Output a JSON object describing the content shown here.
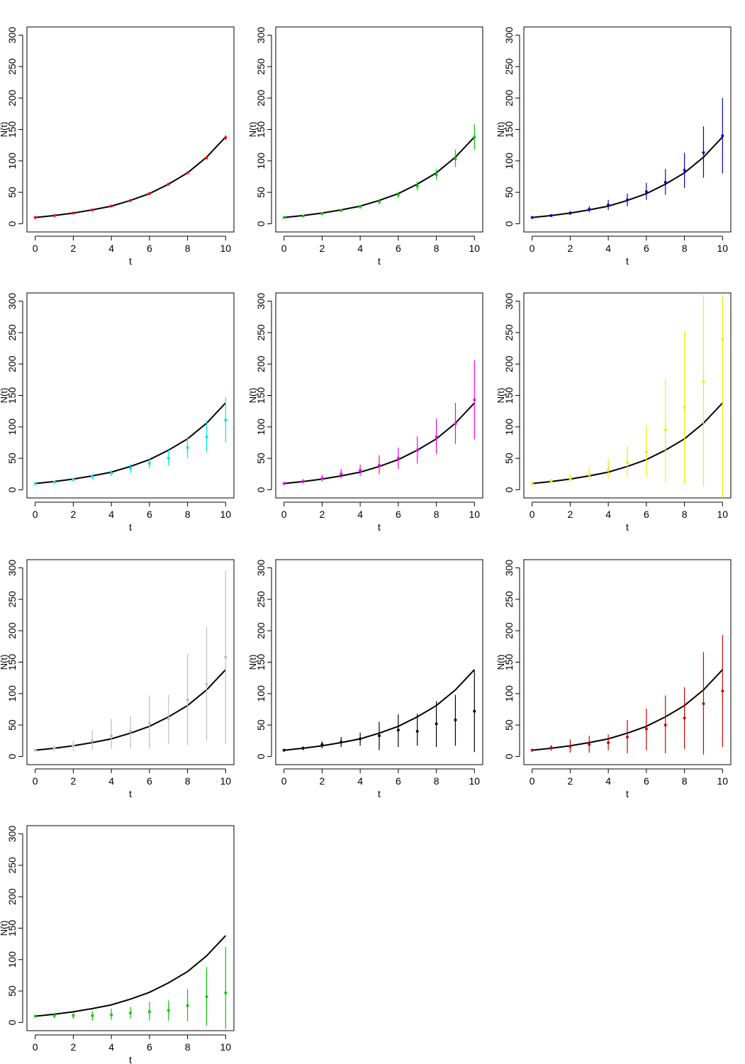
{
  "chart_data": [
    {
      "type": "scatter",
      "xlabel": "t",
      "ylabel": "N(t)",
      "xlim": [
        0,
        10
      ],
      "ylim": [
        0,
        300
      ],
      "xticks": [
        "0",
        "2",
        "4",
        "6",
        "8",
        "10"
      ],
      "yticks": [
        "0",
        "50",
        "100",
        "150",
        "200",
        "250",
        "300"
      ],
      "reference": {
        "x": [
          0,
          1,
          2,
          3,
          4,
          5,
          6,
          7,
          8,
          9,
          10
        ],
        "y": [
          10,
          13,
          17,
          22,
          28,
          37,
          48,
          63,
          81,
          106,
          138
        ],
        "color": "#000000"
      },
      "series": [
        {
          "color": "#ff0000",
          "x": [
            0,
            1,
            2,
            3,
            4,
            5,
            6,
            7,
            8,
            9,
            10
          ],
          "y": [
            10,
            13,
            17,
            22,
            28,
            37,
            48,
            63,
            81,
            105,
            137
          ],
          "lower": [
            9,
            12,
            16,
            21,
            27,
            35,
            46,
            61,
            79,
            102,
            133
          ],
          "upper": [
            11,
            14,
            18,
            23,
            29,
            39,
            50,
            65,
            83,
            108,
            141
          ]
        }
      ]
    },
    {
      "type": "scatter",
      "xlabel": "t",
      "ylabel": "N(t)",
      "xlim": [
        0,
        10
      ],
      "ylim": [
        0,
        300
      ],
      "xticks": [
        "0",
        "2",
        "4",
        "6",
        "8",
        "10"
      ],
      "yticks": [
        "0",
        "50",
        "100",
        "150",
        "200",
        "250",
        "300"
      ],
      "reference": {
        "x": [
          0,
          1,
          2,
          3,
          4,
          5,
          6,
          7,
          8,
          9,
          10
        ],
        "y": [
          10,
          13,
          17,
          22,
          28,
          37,
          48,
          63,
          81,
          106,
          138
        ],
        "color": "#000000"
      },
      "series": [
        {
          "color": "#00cd00",
          "x": [
            0,
            1,
            2,
            3,
            4,
            5,
            6,
            7,
            8,
            9,
            10
          ],
          "y": [
            10,
            12,
            16,
            21,
            27,
            35,
            46,
            60,
            78,
            103,
            138
          ],
          "lower": [
            9,
            11,
            14,
            19,
            24,
            31,
            41,
            53,
            70,
            90,
            118
          ],
          "upper": [
            11,
            14,
            18,
            23,
            30,
            39,
            51,
            67,
            87,
            118,
            158
          ]
        }
      ]
    },
    {
      "type": "scatter",
      "xlabel": "t",
      "ylabel": "N(t)",
      "xlim": [
        0,
        10
      ],
      "ylim": [
        0,
        300
      ],
      "xticks": [
        "0",
        "2",
        "4",
        "6",
        "8",
        "10"
      ],
      "yticks": [
        "0",
        "50",
        "100",
        "150",
        "200",
        "250",
        "300"
      ],
      "reference": {
        "x": [
          0,
          1,
          2,
          3,
          4,
          5,
          6,
          7,
          8,
          9,
          10
        ],
        "y": [
          10,
          13,
          17,
          22,
          28,
          37,
          48,
          63,
          81,
          106,
          138
        ],
        "color": "#000000"
      },
      "series": [
        {
          "color": "#0000cd",
          "x": [
            0,
            1,
            2,
            3,
            4,
            5,
            6,
            7,
            8,
            9,
            10
          ],
          "y": [
            10,
            13,
            17,
            23,
            30,
            38,
            51,
            66,
            85,
            113,
            140
          ],
          "lower": [
            8,
            11,
            14,
            18,
            22,
            28,
            38,
            46,
            57,
            73,
            80
          ],
          "upper": [
            12,
            15,
            20,
            28,
            38,
            48,
            65,
            87,
            113,
            155,
            200
          ]
        }
      ]
    },
    {
      "type": "scatter",
      "xlabel": "t",
      "ylabel": "N(t)",
      "xlim": [
        0,
        10
      ],
      "ylim": [
        0,
        300
      ],
      "xticks": [
        "0",
        "2",
        "4",
        "6",
        "8",
        "10"
      ],
      "yticks": [
        "0",
        "50",
        "100",
        "150",
        "200",
        "250",
        "300"
      ],
      "reference": {
        "x": [
          0,
          1,
          2,
          3,
          4,
          5,
          6,
          7,
          8,
          9,
          10
        ],
        "y": [
          10,
          13,
          17,
          22,
          28,
          37,
          48,
          63,
          81,
          106,
          138
        ],
        "color": "#000000"
      },
      "series": [
        {
          "color": "#00e5ee",
          "x": [
            0,
            1,
            2,
            3,
            4,
            5,
            6,
            7,
            8,
            9,
            10
          ],
          "y": [
            10,
            12,
            16,
            21,
            26,
            34,
            42,
            50,
            67,
            84,
            111
          ],
          "lower": [
            9,
            10,
            14,
            17,
            22,
            26,
            34,
            38,
            50,
            60,
            75
          ],
          "upper": [
            11,
            14,
            19,
            25,
            31,
            41,
            50,
            63,
            84,
            108,
            147
          ]
        }
      ]
    },
    {
      "type": "scatter",
      "xlabel": "t",
      "ylabel": "N(t)",
      "xlim": [
        0,
        10
      ],
      "ylim": [
        0,
        300
      ],
      "xticks": [
        "0",
        "2",
        "4",
        "6",
        "8",
        "10"
      ],
      "yticks": [
        "0",
        "50",
        "100",
        "150",
        "200",
        "250",
        "300"
      ],
      "reference": {
        "x": [
          0,
          1,
          2,
          3,
          4,
          5,
          6,
          7,
          8,
          9,
          10
        ],
        "y": [
          10,
          13,
          17,
          22,
          28,
          37,
          48,
          63,
          81,
          106,
          138
        ],
        "color": "#000000"
      },
      "series": [
        {
          "color": "#ee00ee",
          "x": [
            0,
            1,
            2,
            3,
            4,
            5,
            6,
            7,
            8,
            9,
            10
          ],
          "y": [
            10,
            13,
            18,
            25,
            31,
            39,
            50,
            63,
            84,
            105,
            143
          ],
          "lower": [
            8,
            10,
            13,
            18,
            22,
            25,
            33,
            42,
            57,
            73,
            80
          ],
          "upper": [
            12,
            17,
            24,
            33,
            40,
            55,
            67,
            85,
            113,
            138,
            206
          ]
        }
      ]
    },
    {
      "type": "scatter",
      "xlabel": "t",
      "ylabel": "N(t)",
      "xlim": [
        0,
        10
      ],
      "ylim": [
        0,
        300
      ],
      "xticks": [
        "0",
        "2",
        "4",
        "6",
        "8",
        "10"
      ],
      "yticks": [
        "0",
        "50",
        "100",
        "150",
        "200",
        "250",
        "300"
      ],
      "reference": {
        "x": [
          0,
          1,
          2,
          3,
          4,
          5,
          6,
          7,
          8,
          9,
          10
        ],
        "y": [
          10,
          13,
          17,
          22,
          28,
          37,
          48,
          63,
          81,
          106,
          138
        ],
        "color": "#000000"
      },
      "series": [
        {
          "color": "#eeee00",
          "x": [
            0,
            1,
            2,
            3,
            4,
            5,
            6,
            7,
            8,
            9,
            10
          ],
          "y": [
            10,
            14,
            18,
            24,
            32,
            43,
            60,
            95,
            131,
            172,
            239
          ],
          "lower": [
            8,
            10,
            12,
            15,
            18,
            20,
            20,
            12,
            10,
            5,
            -15
          ],
          "upper": [
            12,
            18,
            25,
            36,
            50,
            70,
            102,
            177,
            253,
            310,
            310
          ]
        }
      ]
    },
    {
      "type": "scatter",
      "xlabel": "t",
      "ylabel": "N(t)",
      "xlim": [
        0,
        10
      ],
      "ylim": [
        0,
        300
      ],
      "xticks": [
        "0",
        "2",
        "4",
        "6",
        "8",
        "10"
      ],
      "yticks": [
        "0",
        "50",
        "100",
        "150",
        "200",
        "250",
        "300"
      ],
      "reference": {
        "x": [
          0,
          1,
          2,
          3,
          4,
          5,
          6,
          7,
          8,
          9,
          10
        ],
        "y": [
          10,
          13,
          17,
          22,
          28,
          37,
          48,
          63,
          81,
          106,
          138
        ],
        "color": "#000000"
      },
      "series": [
        {
          "color": "#bebebe",
          "x": [
            0,
            1,
            2,
            3,
            4,
            5,
            6,
            7,
            8,
            9,
            10
          ],
          "y": [
            10,
            13,
            17,
            25,
            33,
            40,
            53,
            60,
            90,
            115,
            158
          ],
          "lower": [
            8,
            8,
            9,
            10,
            12,
            12,
            12,
            20,
            18,
            25,
            20
          ],
          "upper": [
            12,
            18,
            25,
            42,
            60,
            65,
            97,
            98,
            163,
            206,
            296
          ]
        }
      ]
    },
    {
      "type": "scatter",
      "xlabel": "t",
      "ylabel": "N(t)",
      "xlim": [
        0,
        10
      ],
      "ylim": [
        0,
        300
      ],
      "xticks": [
        "0",
        "2",
        "4",
        "6",
        "8",
        "10"
      ],
      "yticks": [
        "0",
        "50",
        "100",
        "150",
        "200",
        "250",
        "300"
      ],
      "reference": {
        "x": [
          0,
          1,
          2,
          3,
          4,
          5,
          6,
          7,
          8,
          9,
          10
        ],
        "y": [
          10,
          13,
          17,
          22,
          28,
          37,
          48,
          63,
          81,
          106,
          138
        ],
        "color": "#000000"
      },
      "series": [
        {
          "color": "#000000",
          "x": [
            0,
            1,
            2,
            3,
            4,
            5,
            6,
            7,
            8,
            9,
            10
          ],
          "y": [
            10,
            13,
            19,
            23,
            28,
            33,
            42,
            40,
            52,
            58,
            72
          ],
          "lower": [
            8,
            10,
            13,
            15,
            17,
            10,
            15,
            17,
            15,
            17,
            7
          ],
          "upper": [
            12,
            16,
            24,
            31,
            38,
            55,
            67,
            68,
            88,
            98,
            137
          ]
        }
      ]
    },
    {
      "type": "scatter",
      "xlabel": "t",
      "ylabel": "N(t)",
      "xlim": [
        0,
        10
      ],
      "ylim": [
        0,
        300
      ],
      "xticks": [
        "0",
        "2",
        "4",
        "6",
        "8",
        "10"
      ],
      "yticks": [
        "0",
        "50",
        "100",
        "150",
        "200",
        "250",
        "300"
      ],
      "reference": {
        "x": [
          0,
          1,
          2,
          3,
          4,
          5,
          6,
          7,
          8,
          9,
          10
        ],
        "y": [
          10,
          13,
          17,
          22,
          28,
          37,
          48,
          63,
          81,
          106,
          138
        ],
        "color": "#000000"
      },
      "series": [
        {
          "color": "#cd0000",
          "x": [
            0,
            1,
            2,
            3,
            4,
            5,
            6,
            7,
            8,
            9,
            10
          ],
          "y": [
            10,
            14,
            16,
            19,
            22,
            31,
            44,
            50,
            61,
            84,
            104
          ],
          "lower": [
            8,
            9,
            6,
            6,
            10,
            5,
            10,
            5,
            12,
            3,
            15
          ],
          "upper": [
            12,
            18,
            27,
            33,
            35,
            58,
            76,
            97,
            110,
            166,
            193
          ]
        }
      ]
    },
    {
      "type": "scatter",
      "xlabel": "t",
      "ylabel": "N(t)",
      "xlim": [
        0,
        10
      ],
      "ylim": [
        0,
        300
      ],
      "xticks": [
        "0",
        "2",
        "4",
        "6",
        "8",
        "10"
      ],
      "yticks": [
        "0",
        "50",
        "100",
        "150",
        "200",
        "250",
        "300"
      ],
      "reference": {
        "x": [
          0,
          1,
          2,
          3,
          4,
          5,
          6,
          7,
          8,
          9,
          10
        ],
        "y": [
          10,
          13,
          17,
          22,
          28,
          37,
          48,
          63,
          81,
          106,
          138
        ],
        "color": "#000000"
      },
      "series": [
        {
          "color": "#00cd00",
          "x": [
            0,
            1,
            2,
            3,
            4,
            5,
            6,
            7,
            8,
            9,
            10
          ],
          "y": [
            10,
            11,
            11,
            11,
            12,
            15,
            17,
            19,
            27,
            41,
            47
          ],
          "lower": [
            8,
            7,
            6,
            3,
            4,
            6,
            3,
            3,
            2,
            -5,
            -10
          ],
          "upper": [
            12,
            15,
            16,
            18,
            22,
            25,
            33,
            35,
            53,
            88,
            120
          ]
        }
      ]
    }
  ]
}
